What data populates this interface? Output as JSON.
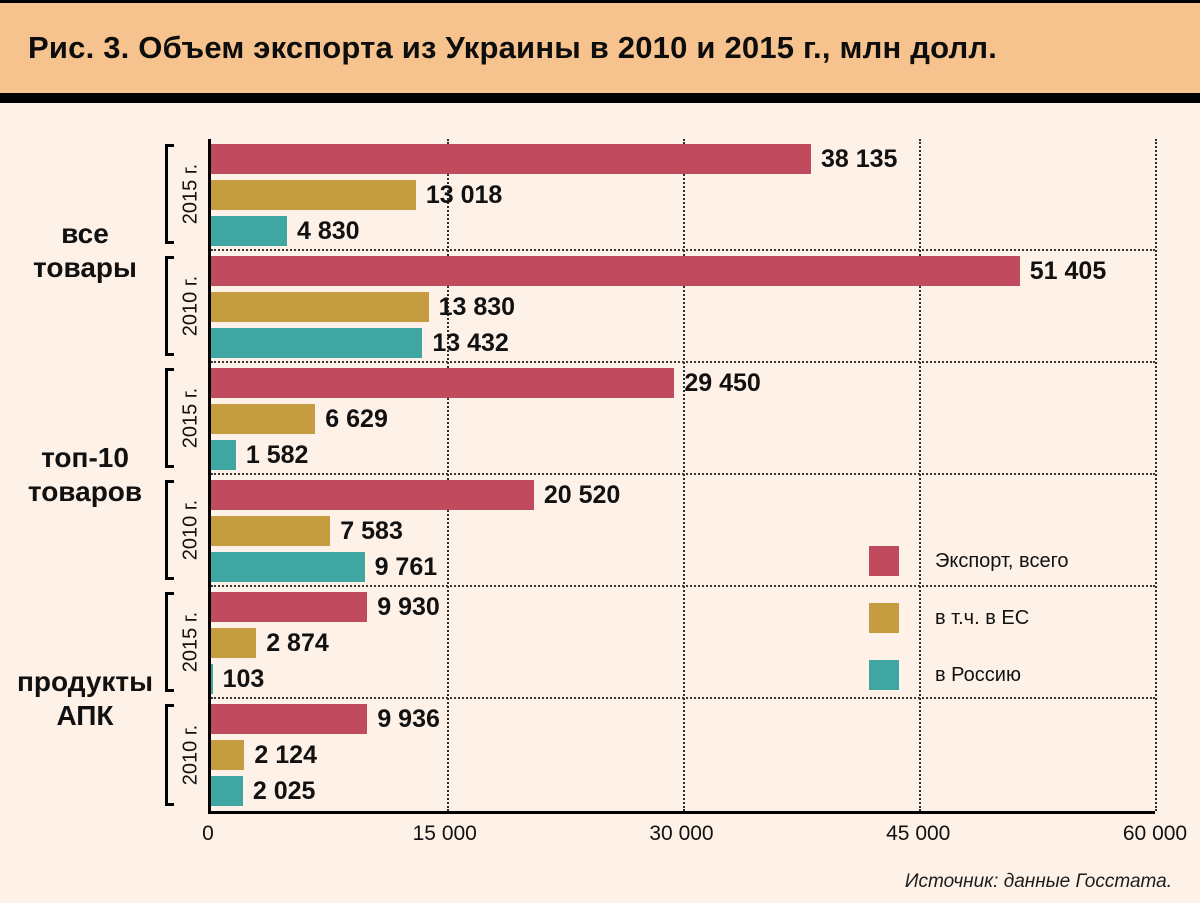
{
  "title": "Рис. 3. Объем экспорта из Украины в 2010 и 2015 г., млн долл.",
  "source": "Источник: данные Госстата.",
  "colors": {
    "header_bg": "#f6c38e",
    "chart_bg": "#fdf1e8",
    "total": "#c04a5e",
    "eu": "#c69c41",
    "russia": "#3fa6a1"
  },
  "chart_data": {
    "type": "bar",
    "orientation": "horizontal",
    "title": "Рис. 3. Объем экспорта из Украины в 2010 и 2015 г., млн долл.",
    "unit": "млн долл.",
    "xlim": [
      0,
      60000
    ],
    "grid": "dotted-vertical",
    "legend_position": "right-middle",
    "ticks": [
      {
        "value": 0,
        "label": "0"
      },
      {
        "value": 15000,
        "label": "15 000"
      },
      {
        "value": 30000,
        "label": "30 000"
      },
      {
        "value": 45000,
        "label": "45 000"
      },
      {
        "value": 60000,
        "label": "60 000"
      }
    ],
    "series": [
      {
        "key": "total",
        "name": "Экспорт, всего",
        "color": "#c04a5e"
      },
      {
        "key": "eu",
        "name": "в т.ч. в ЕС",
        "color": "#c69c41"
      },
      {
        "key": "russia",
        "name": "в Россию",
        "color": "#3fa6a1"
      }
    ],
    "groups": [
      {
        "label": "все\nтовары",
        "subgroups": [
          {
            "year": "2015 г.",
            "values": [
              {
                "series": "Экспорт, всего",
                "value": 38135,
                "label": "38 135"
              },
              {
                "series": "в т.ч. в ЕС",
                "value": 13018,
                "label": "13 018"
              },
              {
                "series": "в Россию",
                "value": 4830,
                "label": "4 830"
              }
            ]
          },
          {
            "year": "2010 г.",
            "values": [
              {
                "series": "Экспорт, всего",
                "value": 51405,
                "label": "51 405"
              },
              {
                "series": "в т.ч. в ЕС",
                "value": 13830,
                "label": "13 830"
              },
              {
                "series": "в Россию",
                "value": 13432,
                "label": "13 432"
              }
            ]
          }
        ]
      },
      {
        "label": "топ-10\nтоваров",
        "subgroups": [
          {
            "year": "2015 г.",
            "values": [
              {
                "series": "Экспорт, всего",
                "value": 29450,
                "label": "29 450"
              },
              {
                "series": "в т.ч. в ЕС",
                "value": 6629,
                "label": "6 629"
              },
              {
                "series": "в Россию",
                "value": 1582,
                "label": "1 582"
              }
            ]
          },
          {
            "year": "2010 г.",
            "values": [
              {
                "series": "Экспорт, всего",
                "value": 20520,
                "label": "20 520"
              },
              {
                "series": "в т.ч. в ЕС",
                "value": 7583,
                "label": "7 583"
              },
              {
                "series": "в Россию",
                "value": 9761,
                "label": "9 761"
              }
            ]
          }
        ]
      },
      {
        "label": "продукты\nАПК",
        "subgroups": [
          {
            "year": "2015 г.",
            "values": [
              {
                "series": "Экспорт, всего",
                "value": 9930,
                "label": "9 930"
              },
              {
                "series": "в т.ч. в ЕС",
                "value": 2874,
                "label": "2 874"
              },
              {
                "series": "в Россию",
                "value": 103,
                "label": "103"
              }
            ]
          },
          {
            "year": "2010 г.",
            "values": [
              {
                "series": "Экспорт, всего",
                "value": 9936,
                "label": "9 936"
              },
              {
                "series": "в т.ч. в ЕС",
                "value": 2124,
                "label": "2 124"
              },
              {
                "series": "в Россию",
                "value": 2025,
                "label": "2 025"
              }
            ]
          }
        ]
      }
    ]
  }
}
